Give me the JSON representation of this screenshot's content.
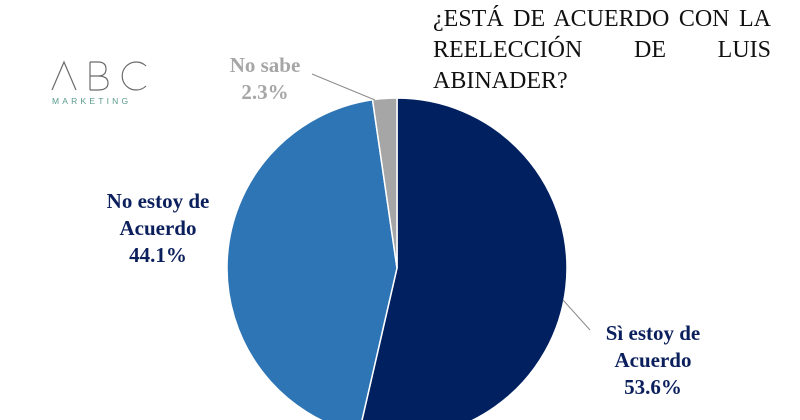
{
  "logo": {
    "mark": "ABC",
    "name": "MARKETING",
    "color": "#5a9a8c"
  },
  "title": "¿ESTÁ DE ACUERDO CON LA REELECCIÓN DE LUIS ABINADER?",
  "chart_data": {
    "type": "pie",
    "title": "¿ESTÁ DE ACUERDO CON LA REELECCIÓN DE LUIS ABINADER?",
    "slices": [
      {
        "name_line1": "Sì estoy de",
        "name_line2": "Acuerdo",
        "value": 53.6,
        "value_label": "53.6%",
        "color": "#002060"
      },
      {
        "name_line1": "No estoy de",
        "name_line2": "Acuerdo",
        "value": 44.1,
        "value_label": "44.1%",
        "color": "#2e75b6"
      },
      {
        "name_line1": "No sabe",
        "name_line2": "",
        "value": 2.3,
        "value_label": "2.3%",
        "color": "#a6a6a6"
      }
    ],
    "start": "12 o'clock",
    "direction": "clockwise",
    "legend": "none"
  }
}
